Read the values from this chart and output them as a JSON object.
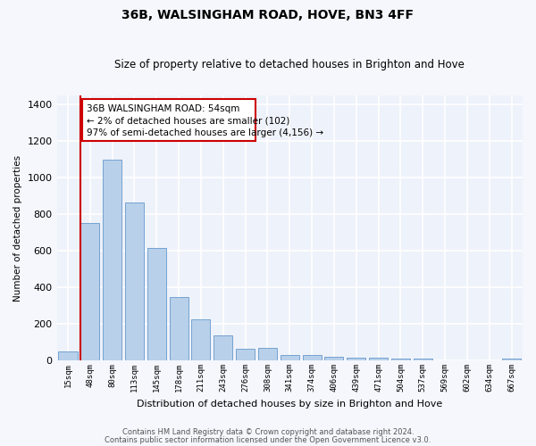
{
  "title": "36B, WALSINGHAM ROAD, HOVE, BN3 4FF",
  "subtitle": "Size of property relative to detached houses in Brighton and Hove",
  "xlabel": "Distribution of detached houses by size in Brighton and Hove",
  "ylabel": "Number of detached properties",
  "bar_labels": [
    "15sqm",
    "48sqm",
    "80sqm",
    "113sqm",
    "145sqm",
    "178sqm",
    "211sqm",
    "243sqm",
    "276sqm",
    "308sqm",
    "341sqm",
    "374sqm",
    "406sqm",
    "439sqm",
    "471sqm",
    "504sqm",
    "537sqm",
    "569sqm",
    "602sqm",
    "634sqm",
    "667sqm"
  ],
  "bar_values": [
    50,
    750,
    1100,
    865,
    615,
    345,
    225,
    135,
    65,
    70,
    30,
    30,
    22,
    15,
    15,
    10,
    12,
    0,
    0,
    0,
    12
  ],
  "bar_color": "#b8d0ea",
  "bar_edge_color": "#6699cc",
  "annotation_title": "36B WALSINGHAM ROAD: 54sqm",
  "annotation_line1": "← 2% of detached houses are smaller (102)",
  "annotation_line2": "97% of semi-detached houses are larger (4,156) →",
  "annotation_box_facecolor": "#ffffff",
  "annotation_box_edgecolor": "#cc0000",
  "vline_color": "#cc0000",
  "vline_x": 0.57,
  "ylim": [
    0,
    1450
  ],
  "yticks": [
    0,
    200,
    400,
    600,
    800,
    1000,
    1200,
    1400
  ],
  "bg_color": "#eef2fa",
  "grid_color": "#ffffff",
  "fig_bg_color": "#f5f7fd",
  "footer1": "Contains HM Land Registry data © Crown copyright and database right 2024.",
  "footer2": "Contains public sector information licensed under the Open Government Licence v3.0."
}
